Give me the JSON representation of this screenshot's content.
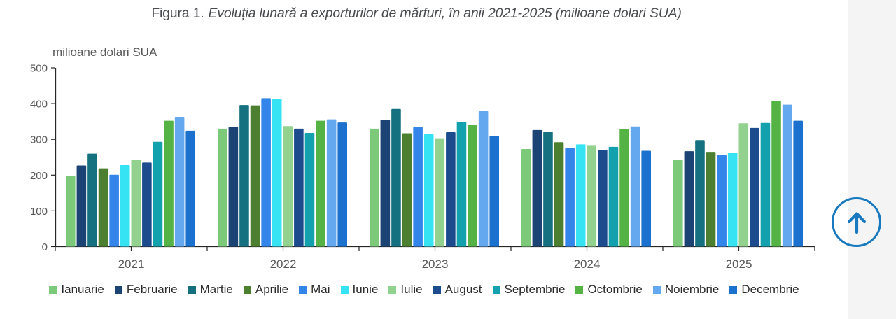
{
  "page": {
    "title_prefix": "Figura 1.",
    "title_italic": "Evoluția lunară a exporturilor de mărfuri, în anii 2021-2025 (milioane dolari SUA)"
  },
  "chart_data": {
    "type": "bar",
    "title": "Figura 1. Evoluția lunară a exporturilor de mărfuri, în anii 2021-2025 (milioane dolari SUA)",
    "axis_title": "milioane dolari SUA",
    "xlabel": "",
    "ylabel": "milioane dolari SUA",
    "ylim": [
      0,
      500
    ],
    "yticks": [
      0,
      100,
      200,
      300,
      400,
      500
    ],
    "grid": false,
    "legend_position": "bottom",
    "categories": [
      "2021",
      "2022",
      "2023",
      "2024",
      "2025"
    ],
    "series": [
      {
        "name": "Ianuarie",
        "color": "#7DC97A",
        "values": [
          198,
          330,
          330,
          273,
          243
        ]
      },
      {
        "name": "Februarie",
        "color": "#1B4373",
        "values": [
          227,
          335,
          355,
          326,
          267
        ]
      },
      {
        "name": "Martie",
        "color": "#15717F",
        "values": [
          260,
          396,
          385,
          321,
          298
        ]
      },
      {
        "name": "Aprilie",
        "color": "#4C8030",
        "values": [
          219,
          395,
          317,
          292,
          265
        ]
      },
      {
        "name": "Mai",
        "color": "#3485EA",
        "values": [
          201,
          415,
          335,
          276,
          256
        ]
      },
      {
        "name": "Iunie",
        "color": "#35E3F2",
        "values": [
          228,
          414,
          314,
          286,
          263
        ]
      },
      {
        "name": "Iulie",
        "color": "#93D18E",
        "values": [
          243,
          337,
          303,
          284,
          345
        ]
      },
      {
        "name": "August",
        "color": "#1C4C8E",
        "values": [
          235,
          330,
          320,
          270,
          332
        ]
      },
      {
        "name": "Septembrie",
        "color": "#13A1AD",
        "values": [
          293,
          318,
          348,
          279,
          346
        ]
      },
      {
        "name": "Octombrie",
        "color": "#55B244",
        "values": [
          352,
          352,
          340,
          329,
          408
        ]
      },
      {
        "name": "Noiembrie",
        "color": "#64A8F0",
        "values": [
          363,
          356,
          379,
          336,
          397
        ]
      },
      {
        "name": "Decembrie",
        "color": "#1D71CE",
        "values": [
          324,
          347,
          309,
          268,
          352
        ]
      }
    ]
  },
  "scroll_top_button": {
    "icon": "arrow-up-icon",
    "accent_color": "#1879BE"
  },
  "colors": {
    "axis": "#262626",
    "axis_label_text": "#595959",
    "title_text": "#4A4C50",
    "legend_text": "#2B2B2B",
    "right_gutter_background": "#F4F4F5"
  }
}
